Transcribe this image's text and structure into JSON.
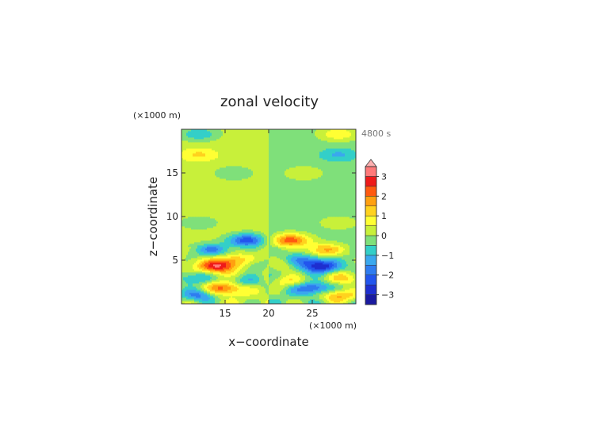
{
  "chart_data": {
    "type": "heatmap",
    "title": "zonal velocity",
    "xlabel": "x−coordinate",
    "ylabel": "z−coordinate",
    "x_unit": "(×1000 m)",
    "y_unit": "(×1000 m)",
    "time_label": "4800 s",
    "xlim": [
      10,
      30
    ],
    "ylim": [
      0,
      20
    ],
    "x_ticks": [
      15,
      20,
      25
    ],
    "y_ticks": [
      5,
      10,
      15
    ],
    "colorbar": {
      "levels": [
        -3.5,
        -3,
        -2.5,
        -2,
        -1.5,
        -1,
        -0.5,
        0,
        0.5,
        1,
        1.5,
        2,
        2.5,
        3,
        3.5
      ],
      "colors": [
        "#1a1aa0",
        "#1e2fd0",
        "#2255ee",
        "#2f7cf0",
        "#3aa8ee",
        "#33cfc8",
        "#7fe07a",
        "#c8f03a",
        "#ffff33",
        "#ffd21e",
        "#ffa010",
        "#ff5a10",
        "#ee1a1a",
        "#ff7a7a",
        "#ffb0b0"
      ],
      "tick_labels": [
        "3",
        "2",
        "1",
        "0",
        "−1",
        "−2",
        "−3"
      ],
      "tick_values": [
        3,
        2,
        1,
        0,
        -1,
        -2,
        -3
      ],
      "extend": "max"
    },
    "features": [
      {
        "x": 14,
        "z": 4.3,
        "u": 2.6
      },
      {
        "x": 26,
        "z": 4.3,
        "u": -2.6
      },
      {
        "x": 17.5,
        "z": 7.3,
        "u": -2.6
      },
      {
        "x": 22.5,
        "z": 7.3,
        "u": 2.6
      },
      {
        "x": 13.5,
        "z": 6.2,
        "u": -1.8
      },
      {
        "x": 26.5,
        "z": 6.2,
        "u": 1.8
      },
      {
        "x": 11.5,
        "z": 3.0,
        "u": -1.4
      },
      {
        "x": 28.5,
        "z": 3.0,
        "u": 1.4
      },
      {
        "x": 12.0,
        "z": 1.0,
        "u": -1.9
      },
      {
        "x": 28.0,
        "z": 1.0,
        "u": 1.9
      },
      {
        "x": 15.0,
        "z": 1.8,
        "u": 2.2
      },
      {
        "x": 25.0,
        "z": 1.8,
        "u": -2.2
      },
      {
        "x": 17.5,
        "z": 2.6,
        "u": -1.2
      },
      {
        "x": 22.5,
        "z": 2.6,
        "u": 1.2
      },
      {
        "x": 16.0,
        "z": 5.0,
        "u": 1.3
      },
      {
        "x": 24.0,
        "z": 5.0,
        "u": -1.3
      },
      {
        "x": 18.8,
        "z": 4.5,
        "u": -1.0
      },
      {
        "x": 21.2,
        "z": 4.5,
        "u": 1.0
      },
      {
        "x": 12.0,
        "z": 9.3,
        "u": -0.6
      },
      {
        "x": 28.0,
        "z": 9.3,
        "u": 0.6
      },
      {
        "x": 16.0,
        "z": 15.0,
        "u": -0.7
      },
      {
        "x": 24.0,
        "z": 15.0,
        "u": 0.7
      },
      {
        "x": 12.0,
        "z": 17.1,
        "u": 0.9
      },
      {
        "x": 28.0,
        "z": 17.1,
        "u": -0.9
      },
      {
        "x": 12.0,
        "z": 19.5,
        "u": -1.2
      },
      {
        "x": 28.0,
        "z": 19.5,
        "u": 1.2
      }
    ]
  }
}
